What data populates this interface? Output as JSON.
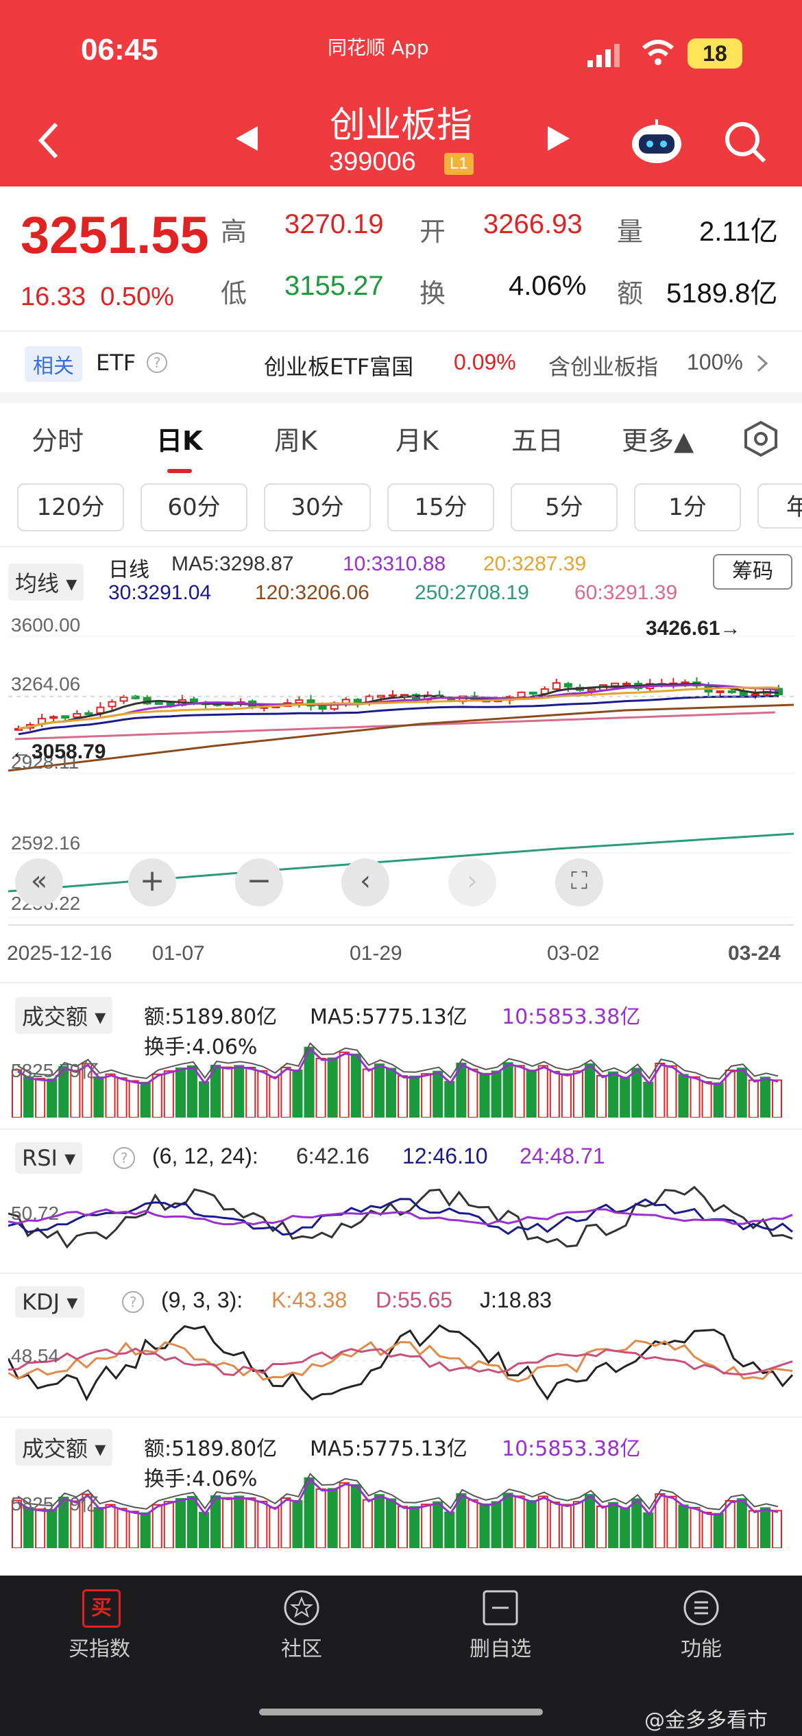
{
  "status": {
    "time": "06:45",
    "app": "同花顺 App",
    "battery": "18"
  },
  "header": {
    "title": "创业板指",
    "code": "399006",
    "level": "L1"
  },
  "quote": {
    "price": "3251.55",
    "change": "16.33",
    "pct": "0.50%",
    "high_lbl": "高",
    "high": "3270.19",
    "open_lbl": "开",
    "open": "3266.93",
    "vol_lbl": "量",
    "vol": "2.11亿",
    "low_lbl": "低",
    "low": "3155.27",
    "turn_lbl": "换",
    "turn": "4.06%",
    "amt_lbl": "额",
    "amt": "5189.8亿"
  },
  "etf": {
    "tag": "相关",
    "label": "ETF",
    "fund": "创业板ETF富国",
    "fund_pct": "0.09%",
    "holding": "含创业板指",
    "holding_pct": "100%"
  },
  "tabs": [
    "分时",
    "日K",
    "周K",
    "月K",
    "五日",
    "更多▲"
  ],
  "intervals": [
    "120分",
    "60分",
    "30分",
    "15分",
    "5分",
    "1分",
    "年"
  ],
  "ma": {
    "label": "均线",
    "kind": "日线",
    "ma5": "MA5:3298.87",
    "ma10": "10:3310.88",
    "ma20": "20:3287.39",
    "ma30": "30:3291.04",
    "ma120": "120:3206.06",
    "ma250": "250:2708.19",
    "ma60": "60:3291.39",
    "chip": "筹码"
  },
  "axis": {
    "y": [
      "3600.00",
      "3264.06",
      "2928.11",
      "2592.16",
      "2256.22"
    ],
    "max": "3426.61→",
    "min": "←3058.79",
    "dates": [
      "2025-12-16",
      "01-07",
      "01-29",
      "03-02",
      "03-24"
    ]
  },
  "vol1": {
    "label": "成交额",
    "amt": "额:5189.80亿",
    "ma5": "MA5:5775.13亿",
    "ma10": "10:5853.38亿",
    "turn": "换手:4.06%",
    "level": "5825.79亿"
  },
  "rsi": {
    "label": "RSI",
    "params": "(6, 12, 24):",
    "r6": "6:42.16",
    "r12": "12:46.10",
    "r24": "24:48.71",
    "level": "50.72"
  },
  "kdj": {
    "label": "KDJ",
    "params": "(9, 3, 3):",
    "k": "K:43.38",
    "d": "D:55.65",
    "j": "J:18.83",
    "level": "48.54"
  },
  "vol2": {
    "label": "成交额",
    "amt": "额:5189.80亿",
    "ma5": "MA5:5775.13亿",
    "ma10": "10:5853.38亿",
    "turn": "换手:4.06%",
    "level": "5825.79亿"
  },
  "nav": {
    "buy": "买指数",
    "community": "社区",
    "remove": "删自选",
    "func": "功能",
    "buy_icon": "买"
  },
  "watermark": "@金多多看市",
  "colors": {
    "header": "#ef3a3f",
    "up": "#e02222",
    "down": "#1a9a3a"
  }
}
